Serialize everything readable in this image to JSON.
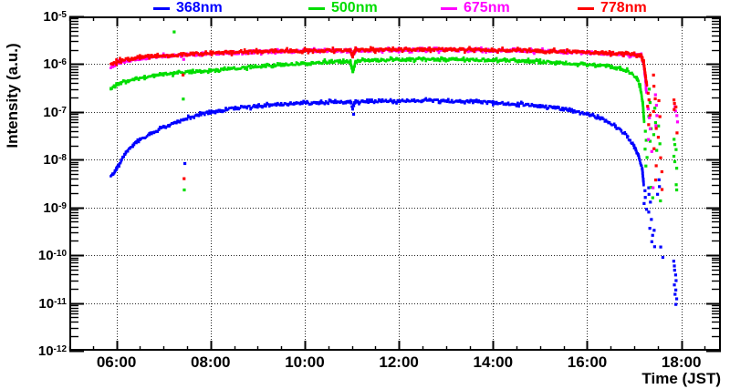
{
  "figure": {
    "y_axis_title": "Intensity (a.u.)",
    "x_axis_title": "Time (JST)"
  },
  "legend": {
    "items": [
      {
        "label": "368nm",
        "color": "#0000ff"
      },
      {
        "label": "500nm",
        "color": "#00dd00"
      },
      {
        "label": "675nm",
        "color": "#ff00ff"
      },
      {
        "label": "778nm",
        "color": "#ff0000"
      }
    ]
  },
  "chart_data": {
    "type": "scatter",
    "title": "",
    "xlabel": "Time (JST)",
    "ylabel": "Intensity (a.u.)",
    "x_axis": {
      "unit": "hours JST",
      "min": 5.0,
      "max": 18.84,
      "minor_tick_step": 0.5,
      "major_ticks": [
        {
          "hour": 6,
          "label": "06:00"
        },
        {
          "hour": 8,
          "label": "08:00"
        },
        {
          "hour": 10,
          "label": "10:00"
        },
        {
          "hour": 12,
          "label": "12:00"
        },
        {
          "hour": 14,
          "label": "14:00"
        },
        {
          "hour": 16,
          "label": "16:00"
        },
        {
          "hour": 18,
          "label": "18:00"
        }
      ]
    },
    "y_axis": {
      "scale": "log",
      "min_exp": -12,
      "max_exp": -5,
      "ticks": [
        {
          "mantissa": "10",
          "exponent": "-5",
          "exp": -5
        },
        {
          "mantissa": "10",
          "exponent": "-6",
          "exp": -6
        },
        {
          "mantissa": "10",
          "exponent": "-7",
          "exp": -7
        },
        {
          "mantissa": "10",
          "exponent": "-8",
          "exp": -8
        },
        {
          "mantissa": "10",
          "exponent": "-9",
          "exp": -9
        },
        {
          "mantissa": "10",
          "exponent": "-10",
          "exp": -10
        },
        {
          "mantissa": "10",
          "exponent": "-11",
          "exp": -11
        },
        {
          "mantissa": "10",
          "exponent": "-12",
          "exp": -12
        }
      ]
    },
    "grid": {
      "style": "dotted",
      "vertical_at_major_hours": true,
      "horizontal_at_decades": true
    },
    "legend_position": "top",
    "series": [
      {
        "name": "368nm",
        "color": "#0000ff",
        "curve": [
          [
            5.88,
            4.5e-09
          ],
          [
            5.95,
            5.5e-09
          ],
          [
            6.0,
            6.5e-09
          ],
          [
            6.1,
            9.5e-09
          ],
          [
            6.2,
            1.4e-08
          ],
          [
            6.35,
            2e-08
          ],
          [
            6.5,
            2.6e-08
          ],
          [
            6.7,
            3.4e-08
          ],
          [
            6.9,
            4.2e-08
          ],
          [
            7.1,
            5.2e-08
          ],
          [
            7.3,
            6.2e-08
          ],
          [
            7.5,
            7.2e-08
          ],
          [
            7.75,
            8.6e-08
          ],
          [
            8.0,
            9.8e-08
          ],
          [
            8.25,
            1.08e-07
          ],
          [
            8.5,
            1.18e-07
          ],
          [
            9.0,
            1.33e-07
          ],
          [
            9.5,
            1.44e-07
          ],
          [
            10.0,
            1.52e-07
          ],
          [
            10.5,
            1.58e-07
          ],
          [
            10.97,
            1.62e-07
          ],
          [
            11.02,
            1.22e-07
          ],
          [
            11.08,
            1.62e-07
          ],
          [
            11.5,
            1.67e-07
          ],
          [
            12.0,
            1.7e-07
          ],
          [
            12.5,
            1.72e-07
          ],
          [
            13.0,
            1.7e-07
          ],
          [
            13.5,
            1.64e-07
          ],
          [
            14.0,
            1.56e-07
          ],
          [
            14.5,
            1.46e-07
          ],
          [
            15.0,
            1.33e-07
          ],
          [
            15.5,
            1.16e-07
          ],
          [
            16.0,
            9.2e-08
          ],
          [
            16.3,
            7.2e-08
          ],
          [
            16.6,
            4.9e-08
          ],
          [
            16.85,
            3.1e-08
          ],
          [
            17.0,
            1.9e-08
          ],
          [
            17.1,
            1.1e-08
          ],
          [
            17.17,
            6.5e-09
          ],
          [
            17.2,
            3e-09
          ]
        ],
        "scatter": [
          [
            11.03,
            8.8e-08
          ],
          [
            7.45,
            8.3e-09
          ],
          [
            17.22,
            2.2e-09
          ],
          [
            17.24,
            1.6e-09
          ],
          [
            17.21,
            1.2e-09
          ],
          [
            17.26,
            9e-10
          ],
          [
            17.3,
            2.6e-09
          ],
          [
            17.32,
            1.9e-09
          ],
          [
            17.34,
            1.3e-09
          ],
          [
            17.31,
            8e-10
          ],
          [
            17.36,
            5.5e-10
          ],
          [
            17.33,
            3.6e-10
          ],
          [
            17.4,
            2.6e-10
          ],
          [
            17.38,
            1.9e-10
          ],
          [
            17.44,
            1.5e-10
          ],
          [
            17.42,
            3.3e-10
          ],
          [
            17.52,
            3.8e-09
          ],
          [
            17.54,
            2.7e-09
          ],
          [
            17.5,
            1.9e-09
          ],
          [
            17.56,
            1.5e-10
          ],
          [
            17.6,
            9e-11
          ],
          [
            17.84,
            7.5e-11
          ],
          [
            17.86,
            6e-11
          ],
          [
            17.85,
            4.8e-11
          ],
          [
            17.87,
            3.8e-11
          ],
          [
            17.88,
            3e-11
          ],
          [
            17.86,
            2.4e-11
          ],
          [
            17.89,
            1.9e-11
          ],
          [
            17.87,
            1.5e-11
          ],
          [
            17.9,
            1.2e-11
          ],
          [
            17.88,
            9.5e-12
          ]
        ]
      },
      {
        "name": "500nm",
        "color": "#00dd00",
        "curve": [
          [
            5.88,
            3e-07
          ],
          [
            5.95,
            3.4e-07
          ],
          [
            6.0,
            3.7e-07
          ],
          [
            6.1,
            4.1e-07
          ],
          [
            6.25,
            4.6e-07
          ],
          [
            6.4,
            5e-07
          ],
          [
            6.6,
            5.4e-07
          ],
          [
            6.8,
            5.8e-07
          ],
          [
            7.0,
            6.1e-07
          ],
          [
            7.3,
            6.5e-07
          ],
          [
            7.6,
            6.9e-07
          ],
          [
            8.0,
            7.4e-07
          ],
          [
            8.5,
            8.2e-07
          ],
          [
            9.0,
            9e-07
          ],
          [
            9.5,
            9.8e-07
          ],
          [
            10.0,
            1.05e-06
          ],
          [
            10.5,
            1.1e-06
          ],
          [
            10.97,
            1.14e-06
          ],
          [
            11.02,
            7e-07
          ],
          [
            11.08,
            1.15e-06
          ],
          [
            11.5,
            1.2e-06
          ],
          [
            12.0,
            1.24e-06
          ],
          [
            12.5,
            1.26e-06
          ],
          [
            13.0,
            1.26e-06
          ],
          [
            13.5,
            1.24e-06
          ],
          [
            14.0,
            1.21e-06
          ],
          [
            14.5,
            1.17e-06
          ],
          [
            15.0,
            1.12e-06
          ],
          [
            15.5,
            1.06e-06
          ],
          [
            16.0,
            1e-06
          ],
          [
            16.4,
            9e-07
          ],
          [
            16.7,
            8e-07
          ],
          [
            16.9,
            6.8e-07
          ],
          [
            17.05,
            5.2e-07
          ],
          [
            17.12,
            3.6e-07
          ],
          [
            17.18,
            1.6e-07
          ],
          [
            17.21,
            6.5e-08
          ]
        ],
        "scatter": [
          [
            7.22,
            4.7e-06
          ],
          [
            7.42,
            1.85e-07
          ],
          [
            7.44,
            2.3e-09
          ],
          [
            17.24,
            4e-08
          ],
          [
            17.26,
            2.6e-08
          ],
          [
            17.23,
            1.7e-08
          ],
          [
            17.28,
            1.1e-08
          ],
          [
            17.25,
            7.5e-09
          ],
          [
            17.32,
            3e-07
          ],
          [
            17.34,
            1.6e-07
          ],
          [
            17.31,
            8e-08
          ],
          [
            17.36,
            4.5e-08
          ],
          [
            17.33,
            2.4e-08
          ],
          [
            17.35,
            2.6e-09
          ],
          [
            17.39,
            1.6e-09
          ],
          [
            17.44,
            1.2e-07
          ],
          [
            17.46,
            6e-08
          ],
          [
            17.42,
            3.3e-08
          ],
          [
            17.48,
            1.6e-08
          ],
          [
            17.52,
            5e-08
          ],
          [
            17.54,
            2.2e-08
          ],
          [
            17.56,
            1.4e-09
          ],
          [
            17.84,
            2.7e-08
          ],
          [
            17.86,
            2.1e-08
          ],
          [
            17.88,
            1.6e-08
          ],
          [
            17.85,
            1.2e-08
          ],
          [
            17.87,
            9e-09
          ],
          [
            17.9,
            6.5e-09
          ],
          [
            17.89,
            3e-09
          ],
          [
            17.91,
            2.3e-09
          ]
        ]
      },
      {
        "name": "675nm",
        "color": "#ff00ff",
        "curve": [
          [
            5.88,
            8.8e-07
          ],
          [
            5.95,
            9.4e-07
          ],
          [
            6.0,
            1e-06
          ],
          [
            6.1,
            1.08e-06
          ],
          [
            6.25,
            1.17e-06
          ],
          [
            6.5,
            1.3e-06
          ],
          [
            6.75,
            1.4e-06
          ],
          [
            7.0,
            1.47e-06
          ],
          [
            7.5,
            1.57e-06
          ],
          [
            8.0,
            1.66e-06
          ],
          [
            8.5,
            1.73e-06
          ],
          [
            9.0,
            1.79e-06
          ],
          [
            9.5,
            1.84e-06
          ],
          [
            10.0,
            1.88e-06
          ],
          [
            10.5,
            1.91e-06
          ],
          [
            10.97,
            1.93e-06
          ],
          [
            11.02,
            1.5e-06
          ],
          [
            11.08,
            1.94e-06
          ],
          [
            11.5,
            1.96e-06
          ],
          [
            12.0,
            1.98e-06
          ],
          [
            12.5,
            1.99e-06
          ],
          [
            13.0,
            1.99e-06
          ],
          [
            13.5,
            1.97e-06
          ],
          [
            14.0,
            1.94e-06
          ],
          [
            14.5,
            1.91e-06
          ],
          [
            15.0,
            1.87e-06
          ],
          [
            15.5,
            1.82e-06
          ],
          [
            16.0,
            1.75e-06
          ],
          [
            16.5,
            1.66e-06
          ],
          [
            17.0,
            1.56e-06
          ],
          [
            17.15,
            1.5e-06
          ],
          [
            17.2,
            1.05e-06
          ],
          [
            17.24,
            4.5e-07
          ],
          [
            17.26,
            2.4e-07
          ]
        ],
        "scatter": [
          [
            7.42,
            1.25e-06
          ],
          [
            17.3,
            1.15e-07
          ],
          [
            17.32,
            7.5e-08
          ],
          [
            17.34,
            4.5e-08
          ],
          [
            17.31,
            2.6e-08
          ],
          [
            17.37,
            1.5e-08
          ],
          [
            17.4,
            2.6e-09
          ],
          [
            17.45,
            2.3e-07
          ],
          [
            17.47,
            1.4e-07
          ],
          [
            17.49,
            8.5e-08
          ],
          [
            17.46,
            5.2e-08
          ],
          [
            17.86,
            1.3e-07
          ],
          [
            17.88,
            1.05e-07
          ],
          [
            17.9,
            8.2e-08
          ],
          [
            17.92,
            6.3e-08
          ]
        ]
      },
      {
        "name": "778nm",
        "color": "#ff0000",
        "curve": [
          [
            5.88,
            1e-06
          ],
          [
            5.95,
            1.07e-06
          ],
          [
            6.0,
            1.12e-06
          ],
          [
            6.1,
            1.2e-06
          ],
          [
            6.25,
            1.28e-06
          ],
          [
            6.5,
            1.38e-06
          ],
          [
            6.75,
            1.46e-06
          ],
          [
            7.0,
            1.52e-06
          ],
          [
            7.5,
            1.62e-06
          ],
          [
            8.0,
            1.7e-06
          ],
          [
            8.5,
            1.77e-06
          ],
          [
            9.0,
            1.83e-06
          ],
          [
            9.5,
            1.88e-06
          ],
          [
            10.0,
            1.92e-06
          ],
          [
            10.5,
            1.95e-06
          ],
          [
            10.97,
            1.97e-06
          ],
          [
            11.02,
            1.45e-06
          ],
          [
            11.08,
            1.98e-06
          ],
          [
            11.5,
            2e-06
          ],
          [
            12.0,
            2.02e-06
          ],
          [
            12.5,
            2.03e-06
          ],
          [
            13.0,
            2.03e-06
          ],
          [
            13.5,
            2.01e-06
          ],
          [
            14.0,
            1.98e-06
          ],
          [
            14.5,
            1.95e-06
          ],
          [
            15.0,
            1.91e-06
          ],
          [
            15.5,
            1.86e-06
          ],
          [
            16.0,
            1.79e-06
          ],
          [
            16.5,
            1.7e-06
          ],
          [
            17.0,
            1.6e-06
          ],
          [
            17.15,
            1.54e-06
          ],
          [
            17.2,
            1.1e-06
          ],
          [
            17.24,
            5.5e-07
          ],
          [
            17.27,
            3.6e-07
          ]
        ],
        "scatter": [
          [
            7.42,
            5.9e-07
          ],
          [
            7.44,
            4e-09
          ],
          [
            17.3,
            2.5e-07
          ],
          [
            17.32,
            1.8e-07
          ],
          [
            17.29,
            1.3e-07
          ],
          [
            17.34,
            8.5e-08
          ],
          [
            17.31,
            5.5e-08
          ],
          [
            17.4,
            5.9e-07
          ],
          [
            17.42,
            3.4e-07
          ],
          [
            17.44,
            1.9e-07
          ],
          [
            17.41,
            1e-07
          ],
          [
            17.46,
            4.5e-08
          ],
          [
            17.43,
            1.7e-08
          ],
          [
            17.47,
            7.5e-09
          ],
          [
            17.45,
            3.8e-09
          ],
          [
            17.53,
            1.7e-07
          ],
          [
            17.55,
            8e-08
          ],
          [
            17.52,
            3e-08
          ],
          [
            17.56,
            1.1e-08
          ],
          [
            17.58,
            5.5e-09
          ],
          [
            17.6,
            2.4e-09
          ],
          [
            17.84,
            1.75e-07
          ],
          [
            17.86,
            1.5e-07
          ],
          [
            17.88,
            1.28e-07
          ],
          [
            17.85,
            1.1e-07
          ],
          [
            17.9,
            3.6e-08
          ]
        ]
      }
    ]
  }
}
